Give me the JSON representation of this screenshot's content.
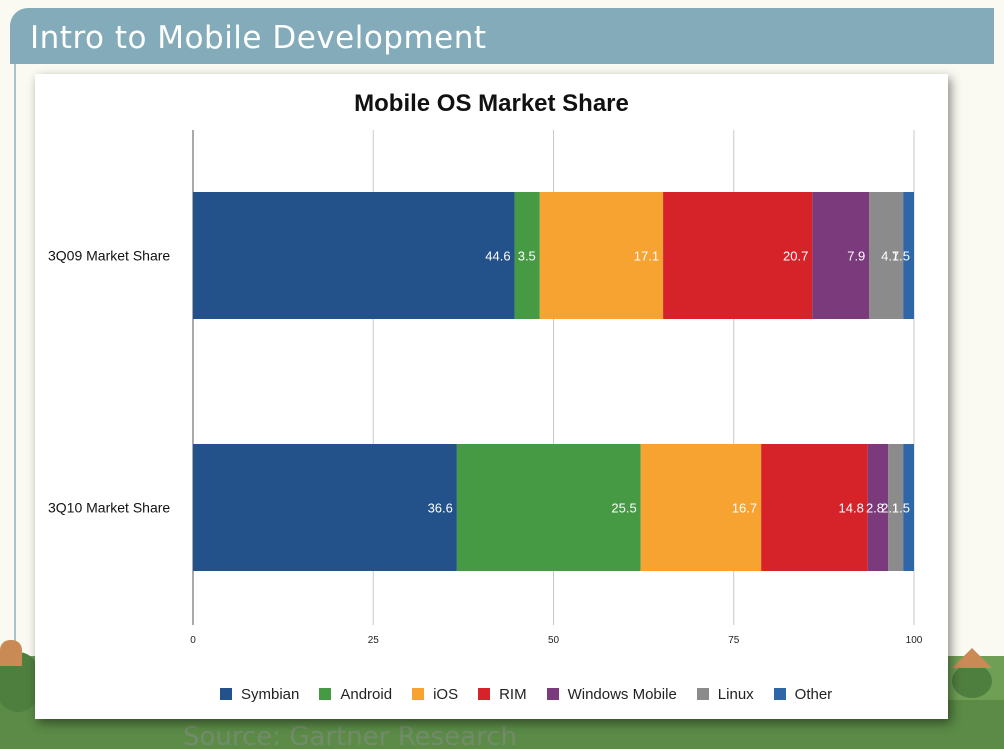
{
  "slide": {
    "title": "Intro to Mobile Development",
    "source": "Source: Gartner Research"
  },
  "chart_data": {
    "type": "bar",
    "orientation": "horizontal",
    "stacked": true,
    "title": "Mobile OS Market Share",
    "xlabel": "",
    "ylabel": "",
    "xlim": [
      0,
      100
    ],
    "x_ticks": [
      "0",
      "25",
      "50",
      "75",
      "100"
    ],
    "grid": true,
    "legend_position": "bottom",
    "categories": [
      "3Q09 Market Share",
      "3Q10 Market Share"
    ],
    "series": [
      {
        "name": "Symbian",
        "color": "#235189",
        "values": [
          44.6,
          36.6
        ],
        "labels": [
          "44.6",
          "36.6"
        ]
      },
      {
        "name": "Android",
        "color": "#479a44",
        "values": [
          3.5,
          25.5
        ],
        "labels": [
          "3.5",
          "25.5"
        ]
      },
      {
        "name": "iOS",
        "color": "#f6a332",
        "values": [
          17.1,
          16.7
        ],
        "labels": [
          "17.1",
          "16.7"
        ]
      },
      {
        "name": "RIM",
        "color": "#d6232a",
        "values": [
          20.7,
          14.8
        ],
        "labels": [
          "20.7",
          "14.8"
        ]
      },
      {
        "name": "Windows Mobile",
        "color": "#7a3a7c",
        "values": [
          7.9,
          2.8
        ],
        "labels": [
          "7.9",
          "2.8"
        ]
      },
      {
        "name": "Linux",
        "color": "#8b8b8b",
        "values": [
          4.7,
          2.1
        ],
        "labels": [
          "4.7",
          "2.1"
        ]
      },
      {
        "name": "Other",
        "color": "#2e66a8",
        "values": [
          1.5,
          1.5
        ],
        "labels": [
          "1.5",
          "1.5"
        ]
      }
    ]
  }
}
